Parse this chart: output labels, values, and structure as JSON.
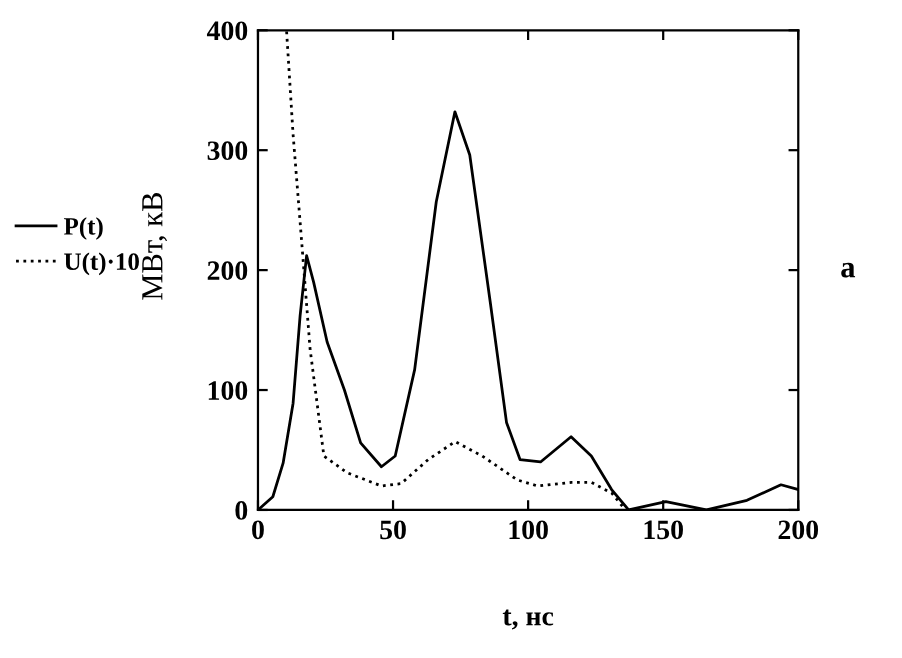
{
  "chart_data": {
    "type": "line",
    "xlabel": "t, нс",
    "ylabel": "МВт, кВ",
    "annotations": [
      "а"
    ],
    "xlim": [
      0,
      200
    ],
    "ylim": [
      0,
      400
    ],
    "xticks": [
      0,
      50,
      100,
      150,
      200
    ],
    "yticks": [
      0,
      100,
      200,
      300,
      400
    ],
    "grid": false,
    "legend": "left",
    "series": [
      {
        "name": "P(t)",
        "color": "#000000",
        "line_style": "solid",
        "x": [
          0,
          5.5,
          9.3,
          13,
          15.6,
          18,
          20.6,
          25.6,
          32,
          38,
          45.7,
          50.8,
          58,
          66,
          72.9,
          78.4,
          86,
          92,
          97,
          104.6,
          115.9,
          123.4,
          130.9,
          137.2,
          151,
          166,
          181,
          193.6,
          200
        ],
        "values": [
          0,
          11,
          39,
          89,
          162,
          212,
          190,
          140,
          100,
          56,
          36,
          45,
          117,
          257,
          332,
          296,
          173,
          73,
          42,
          40,
          61,
          45,
          17,
          0,
          7,
          0,
          8,
          21,
          17
        ]
      },
      {
        "name": "U(t)·10",
        "color": "#000000",
        "line_style": "dotted",
        "x": [
          10.6,
          13,
          15.6,
          19.3,
          24.4,
          33,
          45.7,
          53,
          63,
          73,
          83,
          96,
          103.5,
          116,
          123.4,
          131,
          136
        ],
        "values": [
          399,
          313,
          240,
          134,
          45,
          31,
          20,
          22,
          42,
          57,
          45,
          25,
          20,
          23,
          23,
          14,
          0
        ]
      }
    ]
  }
}
